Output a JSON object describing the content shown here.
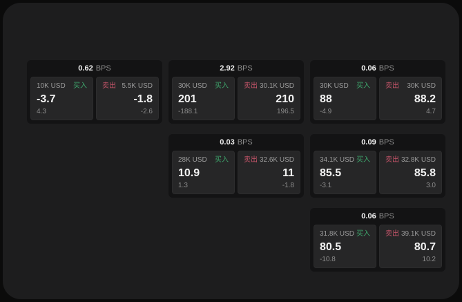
{
  "colors": {
    "page_bg": "#0b0b0b",
    "frame_bg": "#1d1d1e",
    "card_bg": "#131314",
    "panel_bg": "#262627",
    "buy_green": "#3ea56c",
    "sell_red": "#c9566b"
  },
  "labels": {
    "buy": "买入",
    "sell": "卖出",
    "spread_unit": "BPS"
  },
  "cards": [
    {
      "spread": "0.62",
      "unit": "BPS",
      "buy": {
        "amount": "10K USD",
        "side_label": "买入",
        "price": "-3.7",
        "delta": "4.3"
      },
      "sell": {
        "amount": "5.5K USD",
        "side_label": "卖出",
        "price": "-1.8",
        "delta": "-2.6"
      }
    },
    {
      "spread": "2.92",
      "unit": "BPS",
      "buy": {
        "amount": "30K USD",
        "side_label": "买入",
        "price": "201",
        "delta": "-188.1"
      },
      "sell": {
        "amount": "30.1K USD",
        "side_label": "卖出",
        "price": "210",
        "delta": "196.5"
      }
    },
    {
      "spread": "0.06",
      "unit": "BPS",
      "buy": {
        "amount": "30K USD",
        "side_label": "买入",
        "price": "88",
        "delta": "-4.9"
      },
      "sell": {
        "amount": "30K USD",
        "side_label": "卖出",
        "price": "88.2",
        "delta": "4.7"
      }
    },
    {
      "spread": "0.03",
      "unit": "BPS",
      "buy": {
        "amount": "28K USD",
        "side_label": "买入",
        "price": "10.9",
        "delta": "1.3"
      },
      "sell": {
        "amount": "32.6K USD",
        "side_label": "卖出",
        "price": "11",
        "delta": "-1.8"
      }
    },
    {
      "spread": "0.09",
      "unit": "BPS",
      "buy": {
        "amount": "34.1K USD",
        "side_label": "买入",
        "price": "85.5",
        "delta": "-3.1"
      },
      "sell": {
        "amount": "32.8K USD",
        "side_label": "卖出",
        "price": "85.8",
        "delta": "3.0"
      }
    },
    {
      "spread": "0.06",
      "unit": "BPS",
      "buy": {
        "amount": "31.8K USD",
        "side_label": "买入",
        "price": "80.5",
        "delta": "-10.8"
      },
      "sell": {
        "amount": "39.1K USD",
        "side_label": "卖出",
        "price": "80.7",
        "delta": "10.2"
      }
    }
  ]
}
